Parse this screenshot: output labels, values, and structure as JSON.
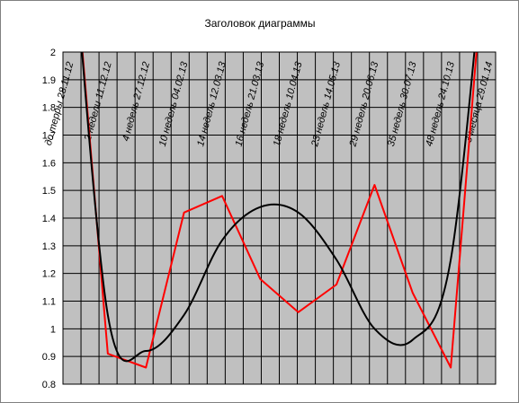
{
  "chart_data": {
    "type": "line",
    "title": "Заголовок диаграммы",
    "xlabel": "",
    "ylabel": "",
    "ylim": [
      0.8,
      2.0
    ],
    "yticks": [
      0.8,
      0.9,
      1.0,
      1.1,
      1.2,
      1.3,
      1.4,
      1.5,
      1.6,
      1.7,
      1.8,
      1.9,
      2.0
    ],
    "ytick_labels": [
      "0.8",
      "0.9",
      "1",
      "1.1",
      "1.2",
      "1.3",
      "1.4",
      "1.5",
      "1.6",
      "1.7",
      "1.8",
      "1.9",
      "2"
    ],
    "categories": [
      "до терры 28.11.12",
      "2 недели 11.12.12",
      "4 недель 27.12.12",
      "10 недель 04.02.13",
      "14 недель 12.03.13",
      "16 недель 21.03.13",
      "18 недель 10.04.13",
      "23 недель 14.05.13",
      "29 недель 20.06.13",
      "35 недель 30.07.13",
      "48 недель 24.10.13",
      "3 месяца 29.01.14"
    ],
    "series": [
      {
        "values": [
          2.55,
          0.91,
          0.86,
          1.42,
          1.48,
          1.18,
          1.06,
          1.16,
          1.52,
          1.13,
          0.86,
          2.55
        ],
        "color": "#ff0000",
        "smooth": false
      },
      {
        "values": [
          2.55,
          1.05,
          0.92,
          1.05,
          1.32,
          1.44,
          1.42,
          1.25,
          1.0,
          0.96,
          1.25,
          2.55
        ],
        "color": "#000000",
        "smooth": true
      }
    ],
    "grid": true,
    "vertical_grid_lines": 23,
    "plot_background": "#c0c0c0",
    "frame_color": "#808080"
  }
}
